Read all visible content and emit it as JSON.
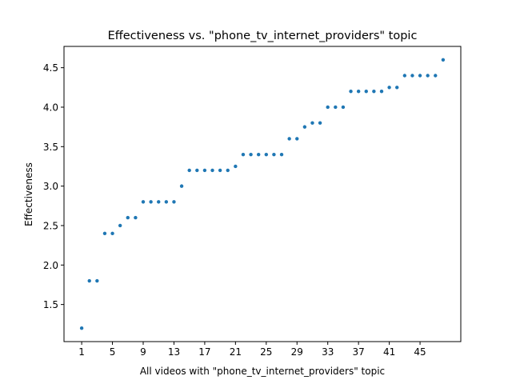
{
  "chart_data": {
    "type": "scatter",
    "title": "Effectiveness vs. \"phone_tv_internet_providers\" topic",
    "xlabel": "All videos with \"phone_tv_internet_providers\" topic",
    "ylabel": "Effectiveness",
    "xlim": [
      -1.3,
      50.3
    ],
    "ylim": [
      1.03,
      4.77
    ],
    "xticks": [
      1,
      5,
      9,
      13,
      17,
      21,
      25,
      29,
      33,
      37,
      41,
      45
    ],
    "yticks": [
      1.5,
      2.0,
      2.5,
      3.0,
      3.5,
      4.0,
      4.5
    ],
    "grid": false,
    "marker_color": "#1f77b4",
    "series": [
      {
        "x": [
          1,
          2,
          3,
          4,
          5,
          6,
          7,
          8,
          9,
          10,
          11,
          12,
          13,
          14,
          15,
          16,
          17,
          18,
          19,
          20,
          21,
          22,
          23,
          24,
          25,
          26,
          27,
          28,
          29,
          30,
          31,
          32,
          33,
          34,
          35,
          36,
          37,
          38,
          39,
          40,
          41,
          42,
          43,
          44,
          45,
          46,
          47,
          48
        ],
        "y": [
          1.2,
          1.8,
          1.8,
          2.4,
          2.4,
          2.5,
          2.6,
          2.6,
          2.8,
          2.8,
          2.8,
          2.8,
          2.8,
          3.0,
          3.2,
          3.2,
          3.2,
          3.2,
          3.2,
          3.2,
          3.25,
          3.4,
          3.4,
          3.4,
          3.4,
          3.4,
          3.4,
          3.6,
          3.6,
          3.75,
          3.8,
          3.8,
          4.0,
          4.0,
          4.0,
          4.2,
          4.2,
          4.2,
          4.2,
          4.2,
          4.25,
          4.25,
          4.4,
          4.4,
          4.4,
          4.4,
          4.4,
          4.6
        ]
      }
    ]
  }
}
